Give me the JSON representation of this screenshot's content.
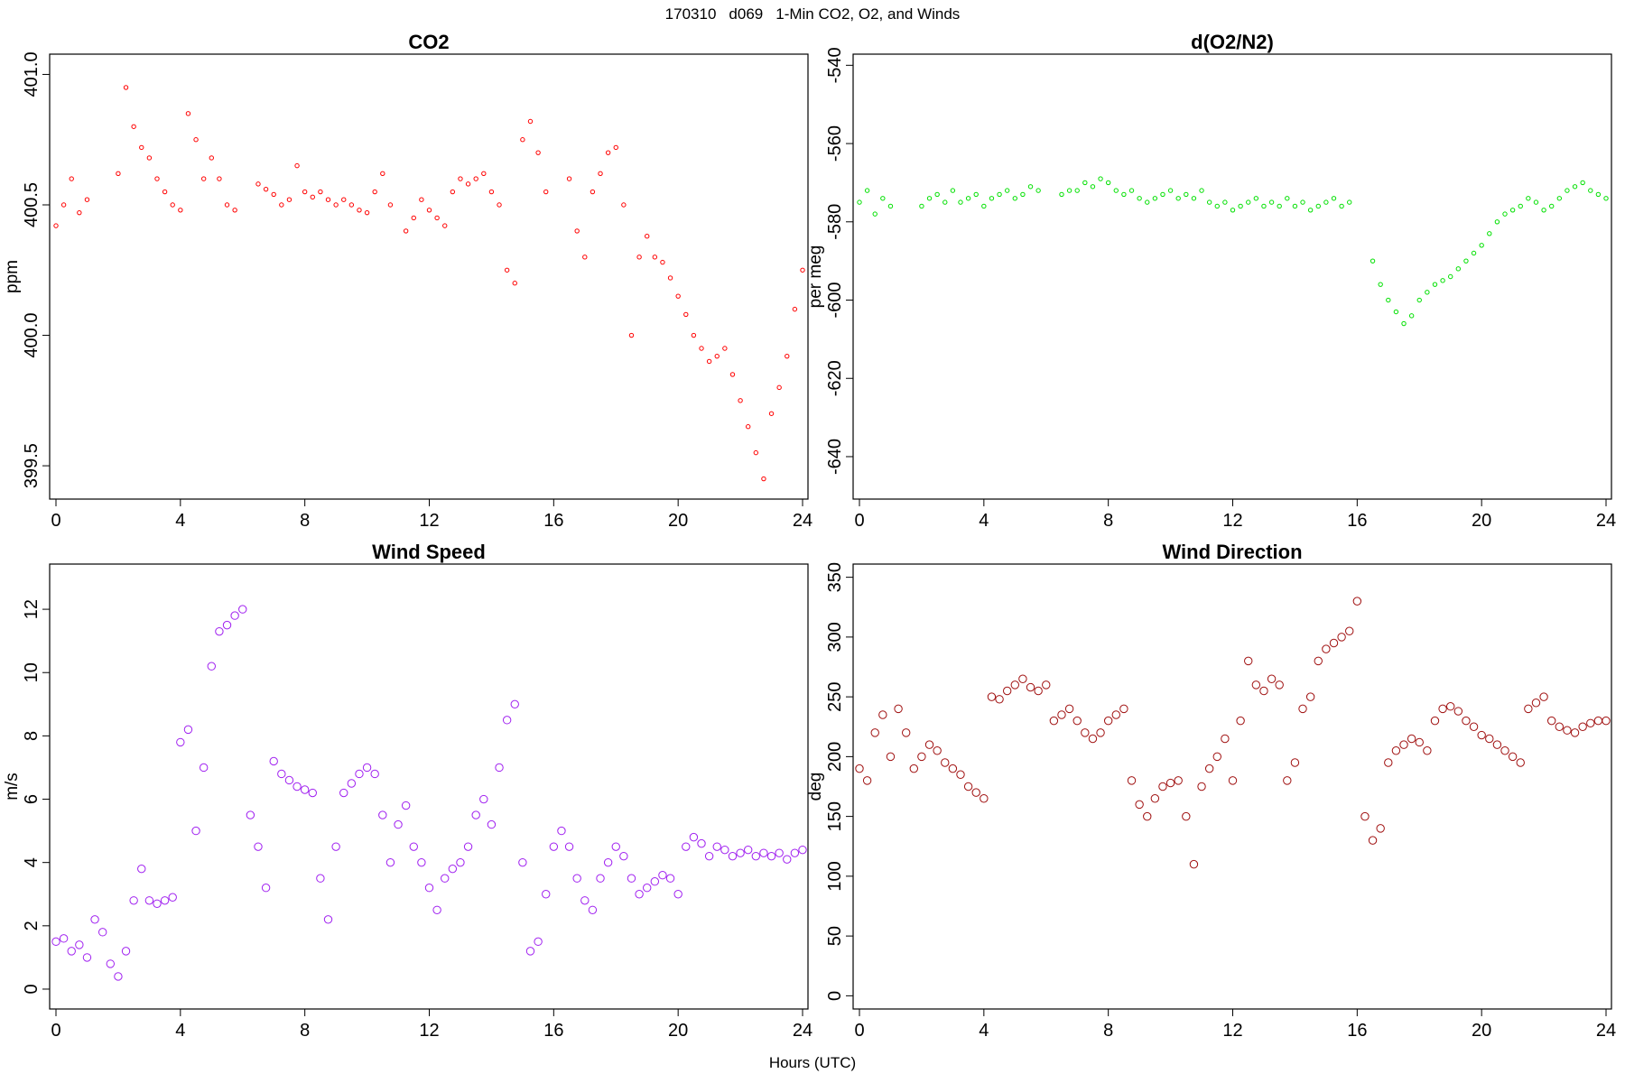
{
  "header": {
    "date": "170310",
    "day": "d069",
    "title": "1-Min CO2, O2, and Winds"
  },
  "x_axis_title": "Hours (UTC)",
  "chart_data": [
    {
      "type": "scatter",
      "title": "CO2",
      "xlabel": "",
      "ylabel": "ppm",
      "xlim": [
        0,
        24
      ],
      "ylim": [
        399.4,
        401.05
      ],
      "x_ticks": [
        0,
        4,
        8,
        12,
        16,
        20,
        24
      ],
      "x_tick_labels": [
        "0",
        "4",
        "8",
        "12",
        "16",
        "20",
        "24"
      ],
      "y_ticks": [
        399.5,
        400.0,
        400.5,
        401.0
      ],
      "y_tick_labels": [
        "399.5",
        "400.0",
        "400.5",
        "401.0"
      ],
      "color": "#ff0000",
      "series": [
        {
          "x": [
            0.0,
            0.25,
            0.5,
            0.75,
            1.0,
            1.25,
            1.5,
            1.75,
            2.0,
            2.25,
            2.5,
            2.75,
            3.0,
            3.25,
            3.5,
            3.75,
            4.0,
            4.25,
            4.5,
            4.75,
            5.0,
            5.25,
            5.5,
            5.75,
            6.0,
            6.25,
            6.5,
            6.75,
            7.0,
            7.25,
            7.5,
            7.75,
            8.0,
            8.25,
            8.5,
            8.75,
            9.0,
            9.25,
            9.5,
            9.75,
            10.0,
            10.25,
            10.5,
            10.75,
            11.0,
            11.25,
            11.5,
            11.75,
            12.0,
            12.25,
            12.5,
            12.75,
            13.0,
            13.25,
            13.5,
            13.75,
            14.0,
            14.25,
            14.5,
            14.75,
            15.0,
            15.25,
            15.5,
            15.75,
            16.0,
            16.25,
            16.5,
            16.75,
            17.0,
            17.25,
            17.5,
            17.75,
            18.0,
            18.25,
            18.5,
            18.75,
            19.0,
            19.25,
            19.5,
            19.75,
            20.0,
            20.25,
            20.5,
            20.75,
            21.0,
            21.25,
            21.5,
            21.75,
            22.0,
            22.25,
            22.5,
            22.75,
            23.0,
            23.25,
            23.5,
            23.75,
            24.0
          ],
          "y": [
            400.42,
            400.5,
            400.6,
            400.47,
            400.52,
            null,
            null,
            null,
            400.62,
            400.95,
            400.8,
            400.72,
            400.68,
            400.6,
            400.55,
            400.5,
            400.48,
            400.85,
            400.75,
            400.6,
            400.68,
            400.6,
            400.5,
            400.48,
            null,
            null,
            400.58,
            400.56,
            400.54,
            400.5,
            400.52,
            400.65,
            400.55,
            400.53,
            400.55,
            400.52,
            400.5,
            400.52,
            400.5,
            400.48,
            400.47,
            400.55,
            400.62,
            400.5,
            null,
            400.4,
            400.45,
            400.52,
            400.48,
            400.45,
            400.42,
            400.55,
            400.6,
            400.58,
            400.6,
            400.62,
            400.55,
            400.5,
            400.25,
            400.2,
            400.75,
            400.82,
            400.7,
            400.55,
            null,
            null,
            400.6,
            400.4,
            400.3,
            400.55,
            400.62,
            400.7,
            400.72,
            400.5,
            400.0,
            400.3,
            400.38,
            400.3,
            400.28,
            400.22,
            400.15,
            400.08,
            400.0,
            399.95,
            399.9,
            399.92,
            399.95,
            399.85,
            399.75,
            399.65,
            399.55,
            399.45,
            399.7,
            399.8,
            399.92,
            400.1,
            400.25
          ]
        }
      ]
    },
    {
      "type": "scatter",
      "title": "d(O2/N2)",
      "xlabel": "",
      "ylabel": "per meg",
      "xlim": [
        0,
        24
      ],
      "ylim": [
        -649,
        -539
      ],
      "x_ticks": [
        0,
        4,
        8,
        12,
        16,
        20,
        24
      ],
      "x_tick_labels": [
        "0",
        "4",
        "8",
        "12",
        "16",
        "20",
        "24"
      ],
      "y_ticks": [
        -640,
        -620,
        -600,
        -580,
        -560,
        -540
      ],
      "y_tick_labels": [
        "-640",
        "-620",
        "-600",
        "-580",
        "-560",
        "-540"
      ],
      "color": "#00e000",
      "series": [
        {
          "x": [
            0.0,
            0.25,
            0.5,
            0.75,
            1.0,
            1.25,
            1.5,
            1.75,
            2.0,
            2.25,
            2.5,
            2.75,
            3.0,
            3.25,
            3.5,
            3.75,
            4.0,
            4.25,
            4.5,
            4.75,
            5.0,
            5.25,
            5.5,
            5.75,
            6.0,
            6.25,
            6.5,
            6.75,
            7.0,
            7.25,
            7.5,
            7.75,
            8.0,
            8.25,
            8.5,
            8.75,
            9.0,
            9.25,
            9.5,
            9.75,
            10.0,
            10.25,
            10.5,
            10.75,
            11.0,
            11.25,
            11.5,
            11.75,
            12.0,
            12.25,
            12.5,
            12.75,
            13.0,
            13.25,
            13.5,
            13.75,
            14.0,
            14.25,
            14.5,
            14.75,
            15.0,
            15.25,
            15.5,
            15.75,
            16.0,
            16.25,
            16.5,
            16.75,
            17.0,
            17.25,
            17.5,
            17.75,
            18.0,
            18.25,
            18.5,
            18.75,
            19.0,
            19.25,
            19.5,
            19.75,
            20.0,
            20.25,
            20.5,
            20.75,
            21.0,
            21.25,
            21.5,
            21.75,
            22.0,
            22.25,
            22.5,
            22.75,
            23.0,
            23.25,
            23.5,
            23.75,
            24.0
          ],
          "y": [
            -575,
            -572,
            -578,
            -574,
            -576,
            null,
            null,
            null,
            -576,
            -574,
            -573,
            -575,
            -572,
            -575,
            -574,
            -573,
            -576,
            -574,
            -573,
            -572,
            -574,
            -573,
            -571,
            -572,
            null,
            null,
            -573,
            -572,
            -572,
            -570,
            -571,
            -569,
            -570,
            -572,
            -573,
            -572,
            -574,
            -575,
            -574,
            -573,
            -572,
            -574,
            -573,
            -574,
            -572,
            -575,
            -576,
            -575,
            -577,
            -576,
            -575,
            -574,
            -576,
            -575,
            -576,
            -574,
            -576,
            -575,
            -577,
            -576,
            -575,
            -574,
            -576,
            -575,
            null,
            null,
            -590,
            -596,
            -600,
            -603,
            -606,
            -604,
            -600,
            -598,
            -596,
            -595,
            -594,
            -592,
            -590,
            -588,
            -586,
            -583,
            -580,
            -578,
            -577,
            -576,
            -574,
            -575,
            -577,
            -576,
            -574,
            -572,
            -571,
            -570,
            -572,
            -573,
            -574
          ]
        }
      ]
    },
    {
      "type": "scatter",
      "title": "Wind Speed",
      "xlabel": "",
      "ylabel": "m/s",
      "xlim": [
        0,
        24
      ],
      "ylim": [
        -0.4,
        13.2
      ],
      "x_ticks": [
        0,
        4,
        8,
        12,
        16,
        20,
        24
      ],
      "x_tick_labels": [
        "0",
        "4",
        "8",
        "12",
        "16",
        "20",
        "24"
      ],
      "y_ticks": [
        0,
        2,
        4,
        6,
        8,
        10,
        12
      ],
      "y_tick_labels": [
        "0",
        "2",
        "4",
        "6",
        "8",
        "10",
        "12"
      ],
      "color": "#a020f0",
      "series": [
        {
          "x": [
            0.0,
            0.25,
            0.5,
            0.75,
            1.0,
            1.25,
            1.5,
            1.75,
            2.0,
            2.25,
            2.5,
            2.75,
            3.0,
            3.25,
            3.5,
            3.75,
            4.0,
            4.25,
            4.5,
            4.75,
            5.0,
            5.25,
            5.5,
            5.75,
            6.0,
            6.25,
            6.5,
            6.75,
            7.0,
            7.25,
            7.5,
            7.75,
            8.0,
            8.25,
            8.5,
            8.75,
            9.0,
            9.25,
            9.5,
            9.75,
            10.0,
            10.25,
            10.5,
            10.75,
            11.0,
            11.25,
            11.5,
            11.75,
            12.0,
            12.25,
            12.5,
            12.75,
            13.0,
            13.25,
            13.5,
            13.75,
            14.0,
            14.25,
            14.5,
            14.75,
            15.0,
            15.25,
            15.5,
            15.75,
            16.0,
            16.25,
            16.5,
            16.75,
            17.0,
            17.25,
            17.5,
            17.75,
            18.0,
            18.25,
            18.5,
            18.75,
            19.0,
            19.25,
            19.5,
            19.75,
            20.0,
            20.25,
            20.5,
            20.75,
            21.0,
            21.25,
            21.5,
            21.75,
            22.0,
            22.25,
            22.5,
            22.75,
            23.0,
            23.25,
            23.5,
            23.75,
            24.0
          ],
          "y": [
            1.5,
            1.6,
            1.2,
            1.4,
            1.0,
            2.2,
            1.8,
            0.8,
            0.4,
            1.2,
            2.8,
            3.8,
            2.8,
            2.7,
            2.8,
            2.9,
            7.8,
            8.2,
            5.0,
            7.0,
            10.2,
            11.3,
            11.5,
            11.8,
            12.0,
            5.5,
            4.5,
            3.2,
            7.2,
            6.8,
            6.6,
            6.4,
            6.3,
            6.2,
            3.5,
            2.2,
            4.5,
            6.2,
            6.5,
            6.8,
            7.0,
            6.8,
            5.5,
            4.0,
            5.2,
            5.8,
            4.5,
            4.0,
            3.2,
            2.5,
            3.5,
            3.8,
            4.0,
            4.5,
            5.5,
            6.0,
            5.2,
            7.0,
            8.5,
            9.0,
            4.0,
            1.2,
            1.5,
            3.0,
            4.5,
            5.0,
            4.5,
            3.5,
            2.8,
            2.5,
            3.5,
            4.0,
            4.5,
            4.2,
            3.5,
            3.0,
            3.2,
            3.4,
            3.6,
            3.5,
            3.0,
            4.5,
            4.8,
            4.6,
            4.2,
            4.5,
            4.4,
            4.2,
            4.3,
            4.4,
            4.2,
            4.3,
            4.2,
            4.3,
            4.1,
            4.3,
            4.4
          ]
        }
      ]
    },
    {
      "type": "scatter",
      "title": "Wind Direction",
      "xlabel": "",
      "ylabel": "deg",
      "xlim": [
        0,
        24
      ],
      "ylim": [
        -5,
        355
      ],
      "x_ticks": [
        0,
        4,
        8,
        12,
        16,
        20,
        24
      ],
      "x_tick_labels": [
        "0",
        "4",
        "8",
        "12",
        "16",
        "20",
        "24"
      ],
      "y_ticks": [
        0,
        50,
        100,
        150,
        200,
        250,
        300,
        350
      ],
      "y_tick_labels": [
        "0",
        "50",
        "100",
        "150",
        "200",
        "250",
        "300",
        "350"
      ],
      "color": "#a01010",
      "series": [
        {
          "x": [
            0.0,
            0.25,
            0.5,
            0.75,
            1.0,
            1.25,
            1.5,
            1.75,
            2.0,
            2.25,
            2.5,
            2.75,
            3.0,
            3.25,
            3.5,
            3.75,
            4.0,
            4.25,
            4.5,
            4.75,
            5.0,
            5.25,
            5.5,
            5.75,
            6.0,
            6.25,
            6.5,
            6.75,
            7.0,
            7.25,
            7.5,
            7.75,
            8.0,
            8.25,
            8.5,
            8.75,
            9.0,
            9.25,
            9.5,
            9.75,
            10.0,
            10.25,
            10.5,
            10.75,
            11.0,
            11.25,
            11.5,
            11.75,
            12.0,
            12.25,
            12.5,
            12.75,
            13.0,
            13.25,
            13.5,
            13.75,
            14.0,
            14.25,
            14.5,
            14.75,
            15.0,
            15.25,
            15.5,
            15.75,
            16.0,
            16.25,
            16.5,
            16.75,
            17.0,
            17.25,
            17.5,
            17.75,
            18.0,
            18.25,
            18.5,
            18.75,
            19.0,
            19.25,
            19.5,
            19.75,
            20.0,
            20.25,
            20.5,
            20.75,
            21.0,
            21.25,
            21.5,
            21.75,
            22.0,
            22.25,
            22.5,
            22.75,
            23.0,
            23.25,
            23.5,
            23.75,
            24.0
          ],
          "y": [
            190,
            180,
            220,
            235,
            200,
            240,
            220,
            190,
            200,
            210,
            205,
            195,
            190,
            185,
            175,
            170,
            165,
            250,
            248,
            255,
            260,
            265,
            258,
            255,
            260,
            230,
            235,
            240,
            230,
            220,
            215,
            220,
            230,
            235,
            240,
            180,
            160,
            150,
            165,
            175,
            178,
            180,
            150,
            110,
            175,
            190,
            200,
            215,
            180,
            230,
            280,
            260,
            255,
            265,
            260,
            180,
            195,
            240,
            250,
            280,
            290,
            295,
            300,
            305,
            330,
            150,
            130,
            140,
            195,
            205,
            210,
            215,
            212,
            205,
            230,
            240,
            242,
            238,
            230,
            225,
            218,
            215,
            210,
            205,
            200,
            195,
            240,
            245,
            250,
            230,
            225,
            222,
            220,
            225,
            228,
            230,
            230
          ]
        }
      ]
    }
  ]
}
